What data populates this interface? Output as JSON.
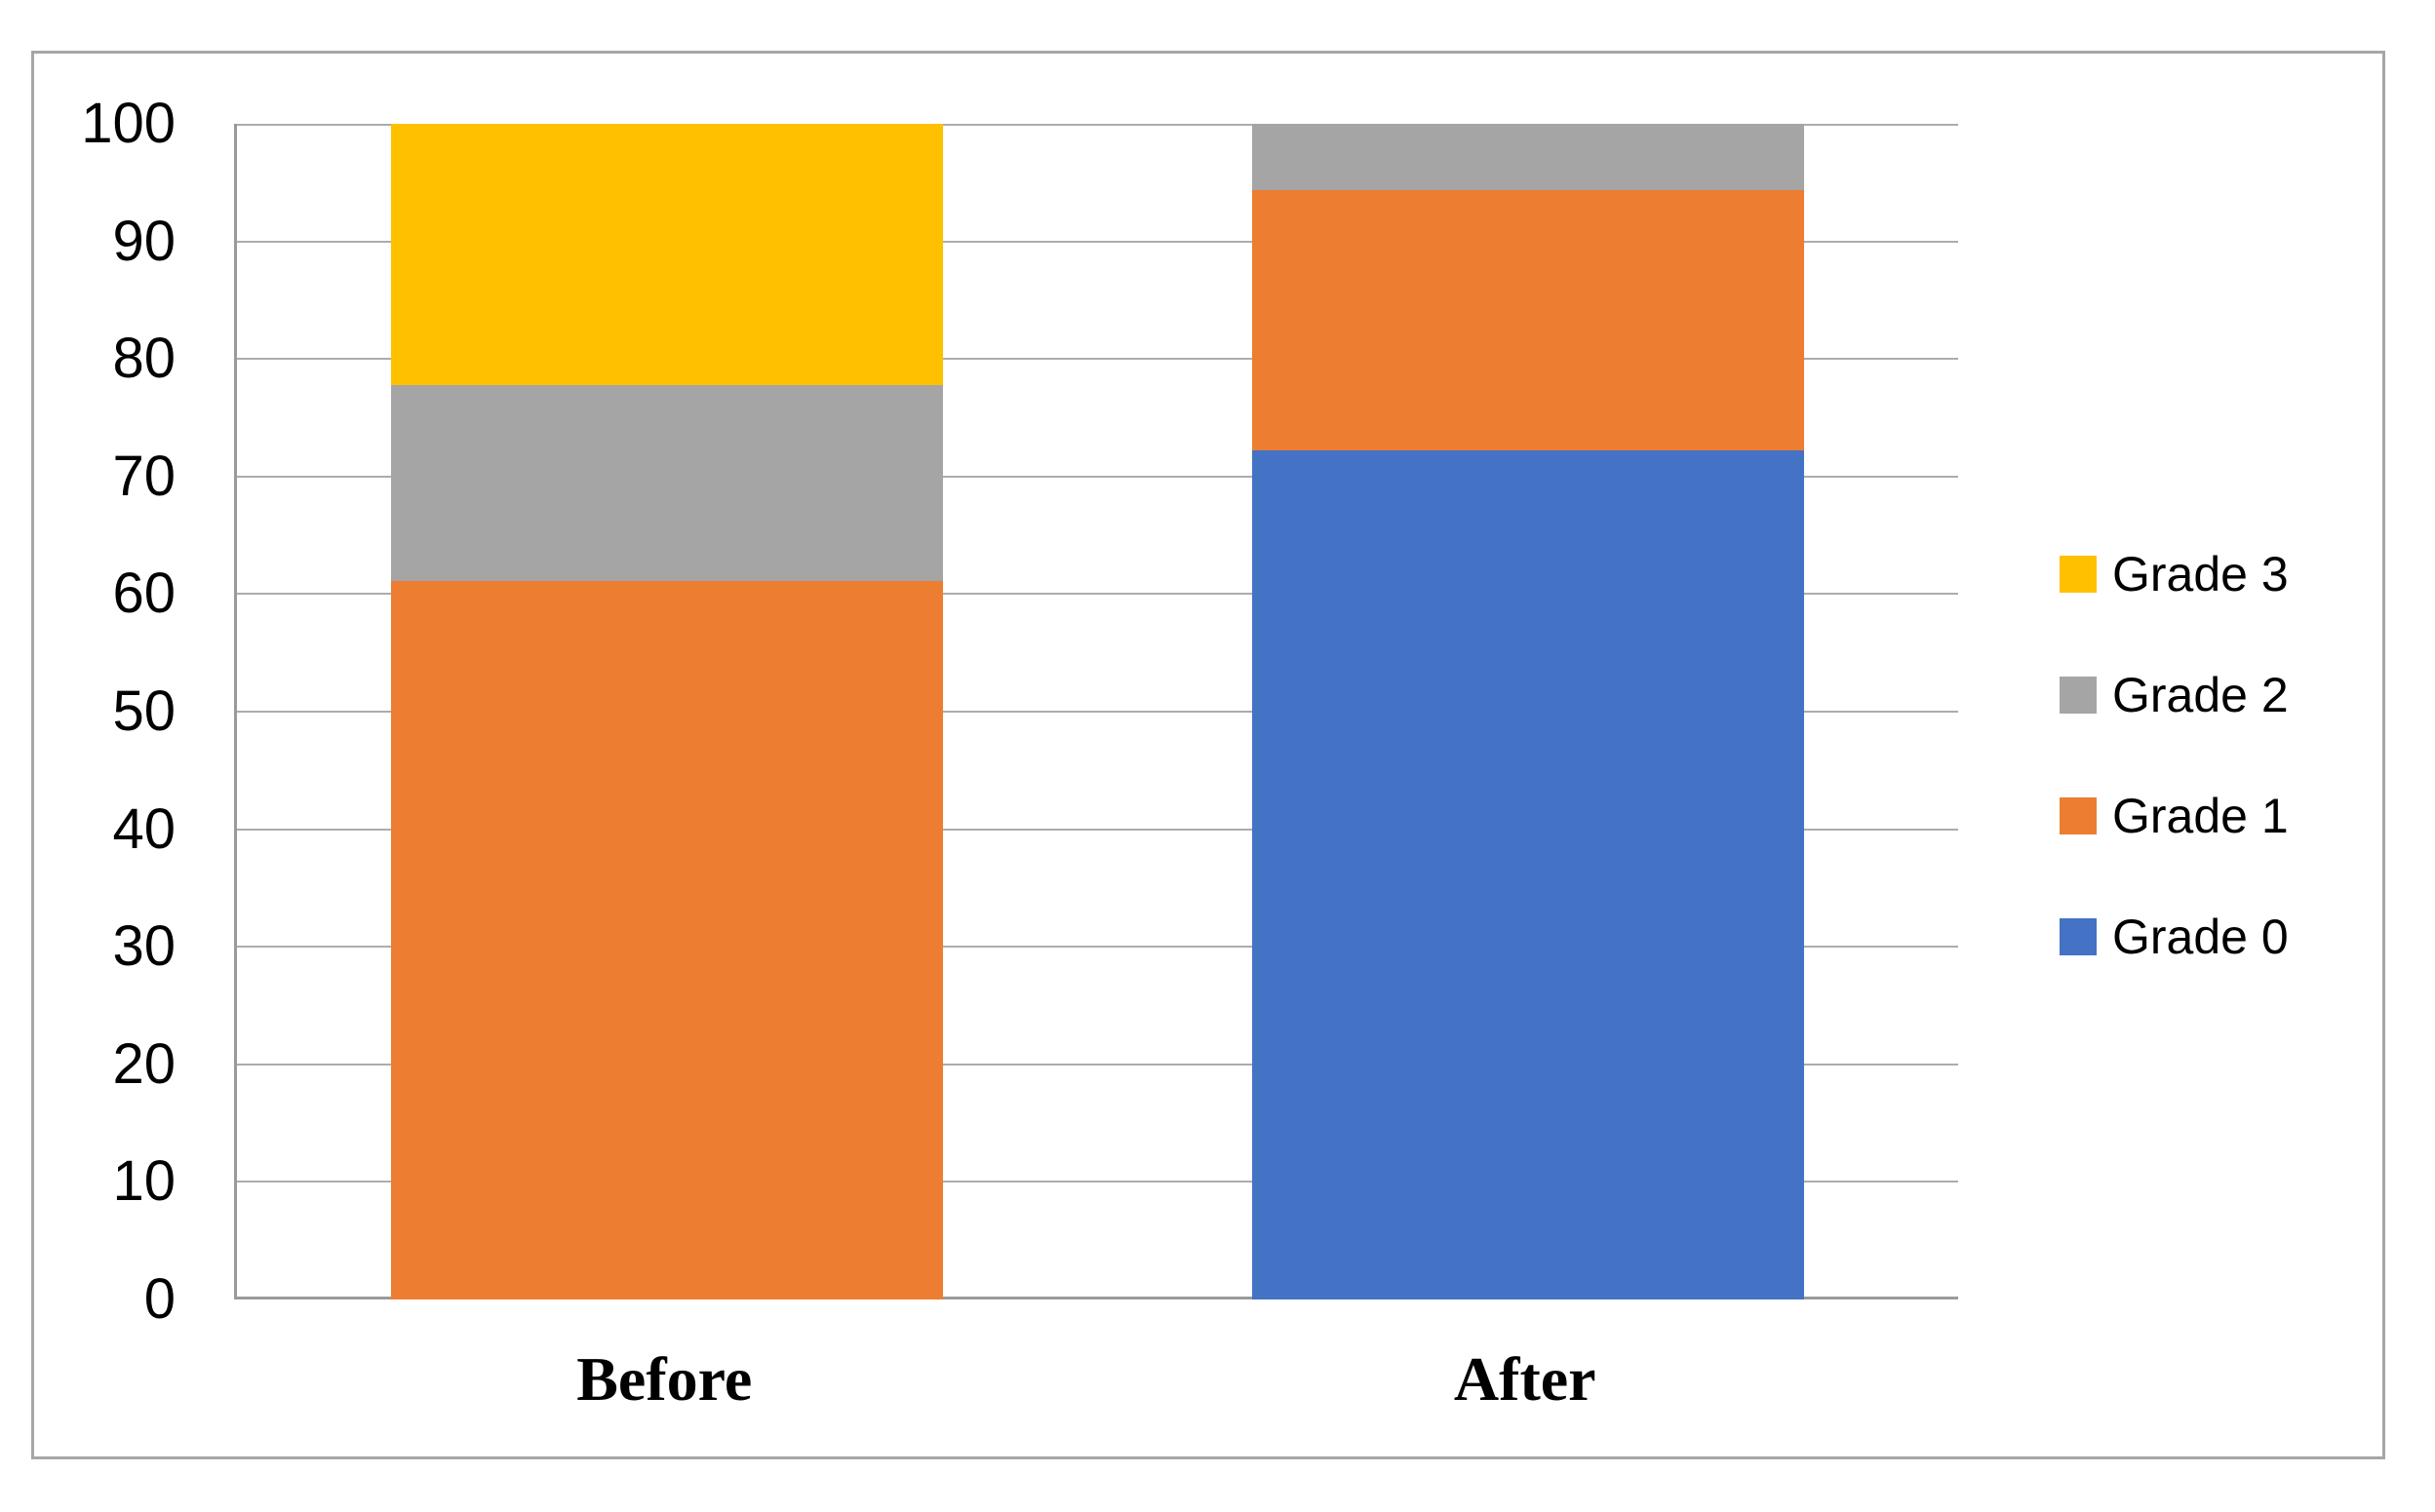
{
  "chart_data": {
    "type": "bar",
    "subtype": "stacked-column",
    "title": "",
    "xlabel": "",
    "ylabel": "",
    "categories": [
      "Before",
      "After"
    ],
    "series": [
      {
        "name": "Grade 0",
        "color": "#4472C4",
        "values": [
          0,
          72.2
        ]
      },
      {
        "name": "Grade 1",
        "color": "#ED7D31",
        "values": [
          61.1,
          22.2
        ]
      },
      {
        "name": "Grade 2",
        "color": "#A5A5A5",
        "values": [
          16.7,
          5.6
        ]
      },
      {
        "name": "Grade 3",
        "color": "#FFC000",
        "values": [
          22.2,
          0
        ]
      }
    ],
    "legend_order": [
      "Grade 3",
      "Grade 2",
      "Grade 1",
      "Grade 0"
    ],
    "legend_position": "right",
    "ylim": [
      0,
      100
    ],
    "yticks": [
      0,
      10,
      20,
      30,
      40,
      50,
      60,
      70,
      80,
      90,
      100
    ],
    "grid": true
  },
  "styles": {
    "gridline_color": "#ACACAC",
    "axis_color": "#9A9A9A",
    "frame_border_color": "#A6A6A6",
    "background": "#FFFFFF",
    "text_color": "#000000"
  }
}
